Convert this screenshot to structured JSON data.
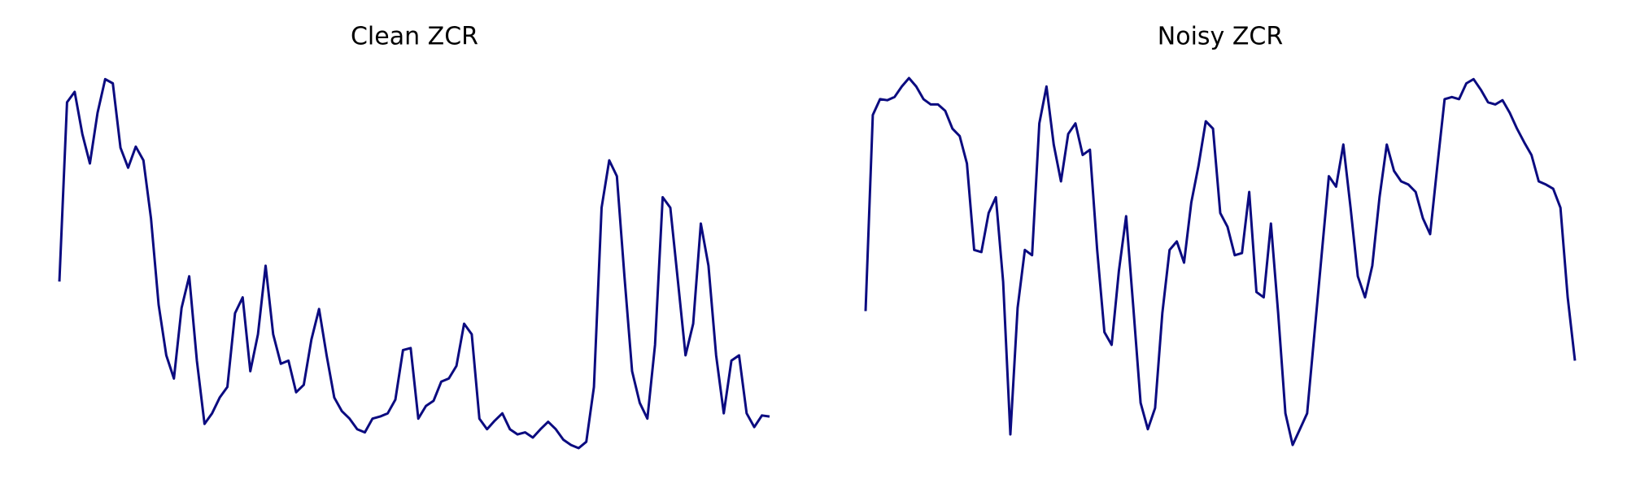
{
  "chart_data": [
    {
      "type": "line",
      "title": "Clean ZCR",
      "color": "#0b0b80",
      "values": [
        160,
        330,
        340,
        300,
        272,
        320,
        352,
        348,
        287,
        268,
        288,
        275,
        220,
        138,
        90,
        68,
        135,
        165,
        85,
        25,
        35,
        50,
        60,
        130,
        145,
        75,
        110,
        175,
        110,
        82,
        85,
        55,
        62,
        105,
        134,
        90,
        50,
        37,
        30,
        20,
        17,
        30,
        32,
        35,
        48,
        95,
        97,
        30,
        42,
        47,
        65,
        68,
        80,
        120,
        110,
        30,
        20,
        28,
        35,
        20,
        15,
        17,
        12,
        20,
        27,
        20,
        10,
        5,
        2,
        8,
        60,
        230,
        275,
        260,
        165,
        75,
        45,
        30,
        100,
        240,
        230,
        160,
        90,
        120,
        215,
        175,
        90,
        35,
        85,
        90,
        35,
        22,
        33,
        32
      ]
    },
    {
      "type": "line",
      "title": "Noisy ZCR",
      "color": "#0b0b80",
      "values": [
        132,
        318,
        333,
        332,
        335,
        345,
        353,
        345,
        333,
        328,
        328,
        322,
        305,
        298,
        272,
        190,
        188,
        225,
        240,
        160,
        15,
        135,
        190,
        185,
        310,
        345,
        290,
        255,
        300,
        310,
        280,
        285,
        190,
        112,
        100,
        170,
        222,
        135,
        45,
        20,
        40,
        130,
        190,
        198,
        178,
        235,
        270,
        312,
        305,
        225,
        212,
        185,
        187,
        245,
        150,
        145,
        215,
        130,
        35,
        5,
        20,
        35,
        110,
        185,
        260,
        250,
        290,
        230,
        165,
        145,
        175,
        240,
        290,
        265,
        255,
        252,
        245,
        220,
        205,
        270,
        333,
        335,
        333,
        348,
        352,
        342,
        330,
        328,
        332,
        320,
        305,
        292,
        280,
        255,
        252,
        248,
        230,
        145,
        85
      ]
    }
  ]
}
